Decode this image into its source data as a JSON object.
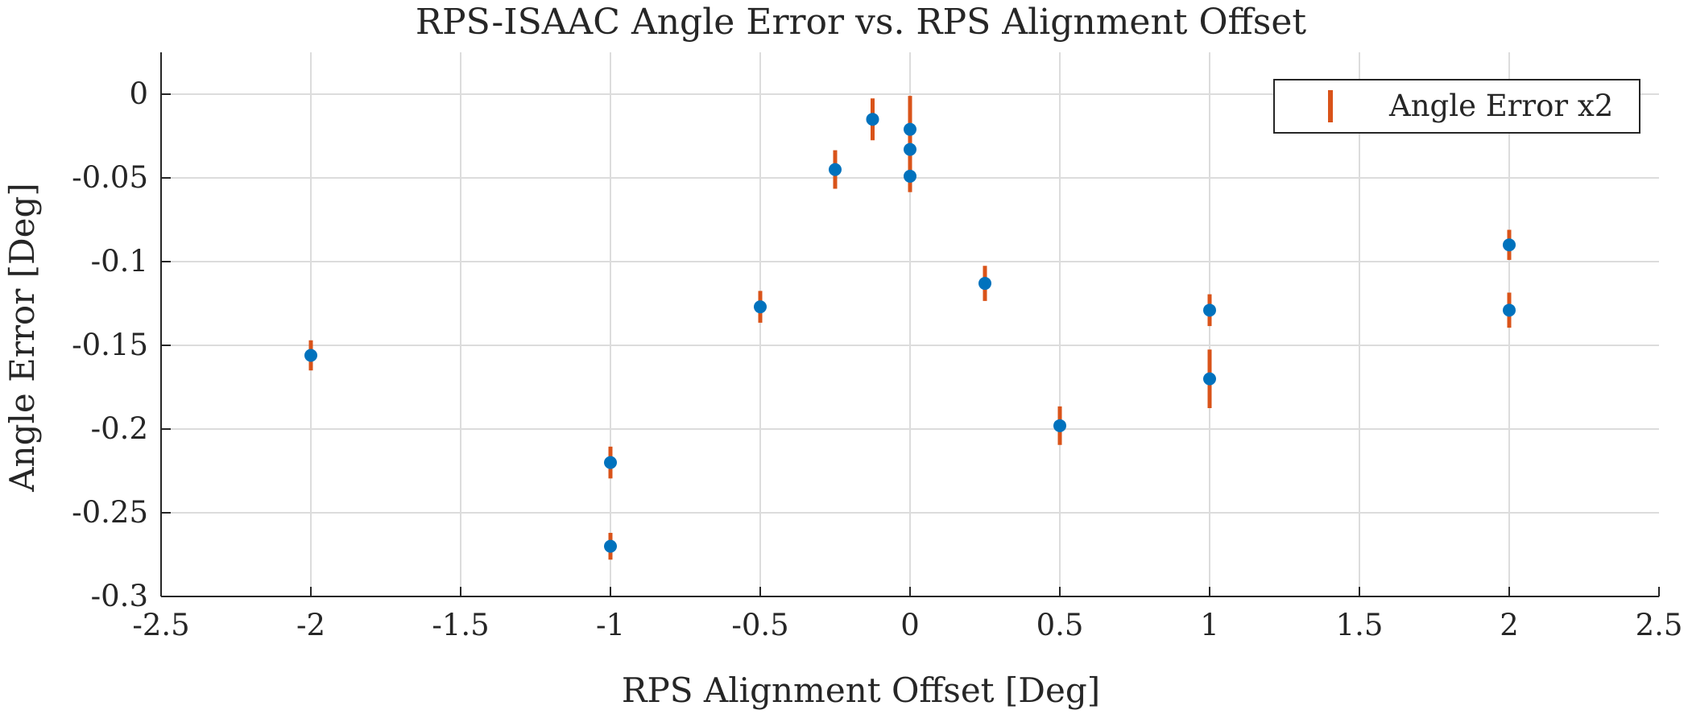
{
  "chart_data": {
    "type": "scatter",
    "title": "RPS-ISAAC Angle Error vs. RPS Alignment Offset",
    "xlabel": "RPS Alignment Offset [Deg]",
    "ylabel": "Angle Error [Deg]",
    "xlim": [
      -2.5,
      2.5
    ],
    "ylim": [
      -0.3,
      0.025
    ],
    "xticks": [
      -2.5,
      -2,
      -1.5,
      -1,
      -0.5,
      0,
      0.5,
      1,
      1.5,
      2,
      2.5
    ],
    "xtick_labels": [
      "-2.5",
      "-2",
      "-1.5",
      "-1",
      "-0.5",
      "0",
      "0.5",
      "1",
      "1.5",
      "2",
      "2.5"
    ],
    "yticks": [
      0,
      -0.05,
      -0.1,
      -0.15,
      -0.2,
      -0.25,
      -0.3
    ],
    "ytick_labels": [
      "0",
      "-0.05",
      "-0.1",
      "-0.15",
      "-0.2",
      "-0.25",
      "-0.3"
    ],
    "grid": true,
    "legend": {
      "entries": [
        "Angle Error x2"
      ],
      "placement": "top-right"
    },
    "colors": {
      "points": "#0072BD",
      "error_bars": "#D95319",
      "axis": "#262626",
      "grid": "#dcdcdc"
    },
    "points": [
      {
        "x": -2,
        "y": -0.156,
        "err": 0.009
      },
      {
        "x": -1,
        "y": -0.22,
        "err": 0.0095
      },
      {
        "x": -1,
        "y": -0.27,
        "err": 0.008
      },
      {
        "x": -0.5,
        "y": -0.127,
        "err": 0.0095
      },
      {
        "x": -0.25,
        "y": -0.045,
        "err": 0.0115
      },
      {
        "x": -0.125,
        "y": -0.015,
        "err": 0.0125
      },
      {
        "x": 0,
        "y": -0.021,
        "err": 0.02
      },
      {
        "x": 0,
        "y": -0.033,
        "err": 0.01
      },
      {
        "x": 0,
        "y": -0.049,
        "err": 0.0095
      },
      {
        "x": 0.25,
        "y": -0.113,
        "err": 0.0105
      },
      {
        "x": 0.5,
        "y": -0.198,
        "err": 0.0115
      },
      {
        "x": 1,
        "y": -0.129,
        "err": 0.0095
      },
      {
        "x": 1,
        "y": -0.17,
        "err": 0.0175
      },
      {
        "x": 2,
        "y": -0.09,
        "err": 0.009
      },
      {
        "x": 2,
        "y": -0.129,
        "err": 0.0105
      }
    ]
  }
}
